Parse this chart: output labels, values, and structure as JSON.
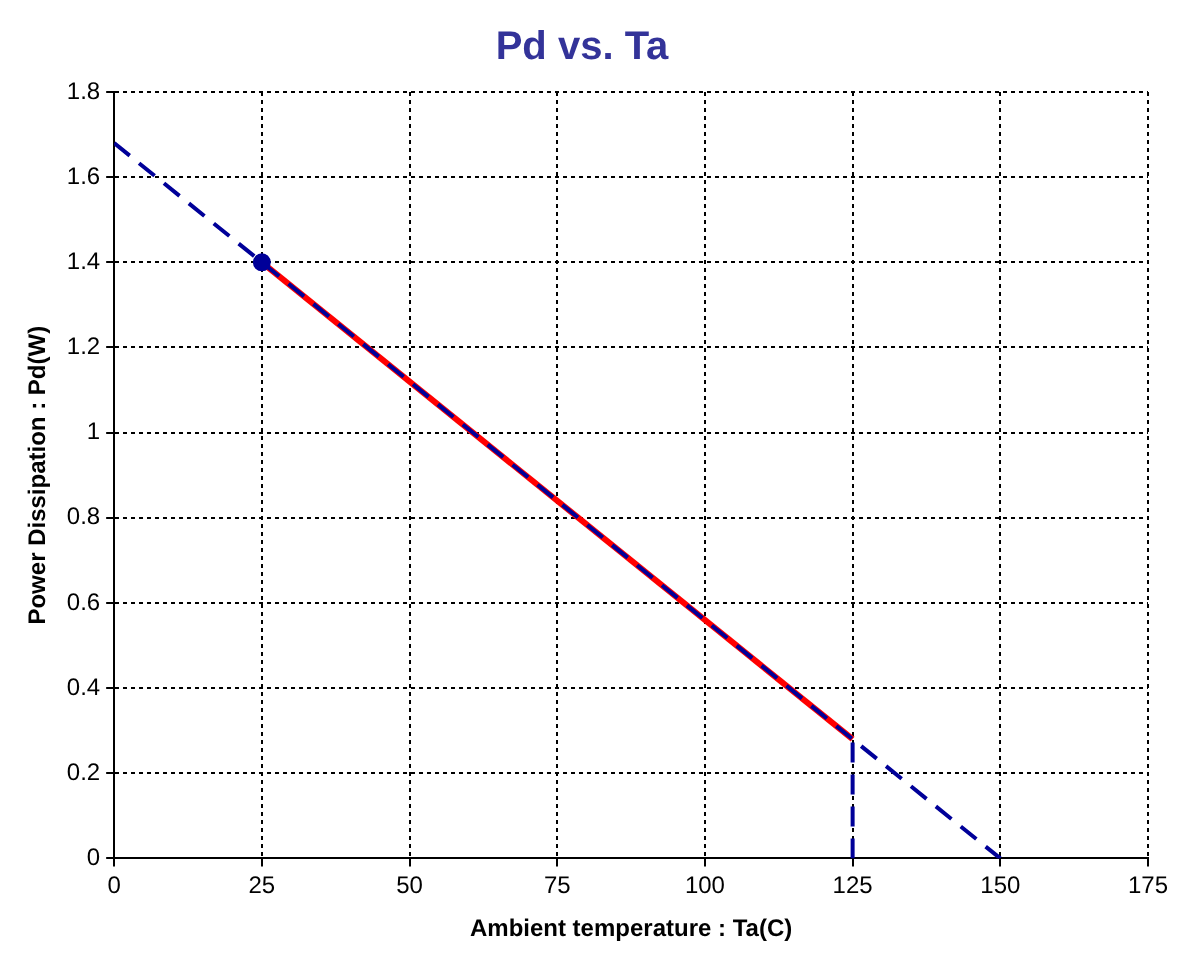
{
  "chart_data": {
    "type": "line",
    "title": "Pd vs. Ta",
    "xlabel": "Ambient temperature : Ta(C)",
    "ylabel": "Power Dissipation : Pd(W)",
    "xlim": [
      0,
      175
    ],
    "xticks": [
      0,
      25,
      50,
      75,
      100,
      125,
      150,
      175
    ],
    "ylim": [
      0,
      1.8
    ],
    "yticks": [
      0,
      0.2,
      0.4,
      0.6,
      0.8,
      1,
      1.2,
      1.4,
      1.6,
      1.8
    ],
    "grid": true,
    "legend": false,
    "series": [
      {
        "type": "line",
        "x": [
          0,
          150
        ],
        "values": [
          1.68,
          0
        ],
        "color": "#000099",
        "line_style": "dashed",
        "marker": "none"
      },
      {
        "type": "line",
        "x": [
          25,
          125
        ],
        "values": [
          1.4,
          0.28
        ],
        "color": "#ff0000",
        "line_style": "solid",
        "marker": "none"
      },
      {
        "type": "line",
        "x": [
          125,
          125
        ],
        "values": [
          0,
          0.28
        ],
        "color": "#000099",
        "line_style": "dashed",
        "marker": "none"
      },
      {
        "type": "scatter",
        "x": [
          25
        ],
        "values": [
          1.4
        ],
        "color": "#000099",
        "marker": "circle"
      }
    ]
  }
}
